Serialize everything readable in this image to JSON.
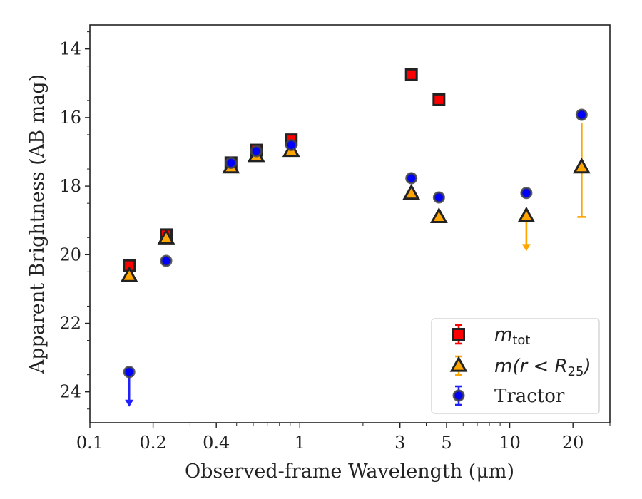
{
  "chart_data": {
    "type": "scatter",
    "title": "",
    "xlabel": "Observed-frame Wavelength (μm)",
    "ylabel": "Apparent Brightness (AB mag)",
    "xscale": "log",
    "yaxis_inverted": true,
    "xlim": [
      0.1,
      30
    ],
    "ylim": [
      24.9,
      13.3
    ],
    "x_ticks": [
      0.1,
      0.2,
      0.4,
      1,
      3,
      5,
      10,
      20
    ],
    "x_tick_labels": [
      "0.1",
      "0.2",
      "0.4",
      "1",
      "3",
      "5",
      "10",
      "20"
    ],
    "y_ticks": [
      14,
      16,
      18,
      20,
      22,
      24
    ],
    "y_tick_labels": [
      "14",
      "16",
      "18",
      "20",
      "22",
      "24"
    ],
    "grid": false,
    "legend_position": "bottom-right",
    "series": [
      {
        "name": "m_tot",
        "legend_label": {
          "main": "m",
          "sub": "tot"
        },
        "marker": "square",
        "color": "#ff0000",
        "edgecolor": "#222222",
        "points": [
          {
            "x": 0.154,
            "y": 20.32
          },
          {
            "x": 0.231,
            "y": 19.42
          },
          {
            "x": 0.47,
            "y": 17.32
          },
          {
            "x": 0.62,
            "y": 16.95
          },
          {
            "x": 0.91,
            "y": 16.65
          },
          {
            "x": 3.4,
            "y": 14.75
          },
          {
            "x": 4.6,
            "y": 15.48
          }
        ]
      },
      {
        "name": "m(r<R25)",
        "legend_label": {
          "main": "m(r < R",
          "sub": "25",
          "tail": ")"
        },
        "marker": "triangle",
        "color": "#ffa500",
        "edgecolor": "#222222",
        "points": [
          {
            "x": 0.154,
            "y": 20.62
          },
          {
            "x": 0.231,
            "y": 19.52
          },
          {
            "x": 0.47,
            "y": 17.45
          },
          {
            "x": 0.62,
            "y": 17.12
          },
          {
            "x": 0.91,
            "y": 16.97
          },
          {
            "x": 3.4,
            "y": 18.22
          },
          {
            "x": 4.6,
            "y": 18.9
          },
          {
            "x": 12.0,
            "y": 18.88,
            "upper_limit": true
          },
          {
            "x": 22.0,
            "y": 17.45,
            "yerr": [
              1.3,
              1.45
            ]
          }
        ]
      },
      {
        "name": "Tractor",
        "legend_label": {
          "main": "Tractor"
        },
        "marker": "circle",
        "color": "#0000ff",
        "edgecolor": "#444444",
        "points": [
          {
            "x": 0.154,
            "y": 23.42,
            "upper_limit": true
          },
          {
            "x": 0.231,
            "y": 20.18
          },
          {
            "x": 0.47,
            "y": 17.32
          },
          {
            "x": 0.62,
            "y": 16.98
          },
          {
            "x": 0.91,
            "y": 16.8
          },
          {
            "x": 3.4,
            "y": 17.77
          },
          {
            "x": 4.6,
            "y": 18.33
          },
          {
            "x": 12.0,
            "y": 18.2
          },
          {
            "x": 22.0,
            "y": 15.92
          }
        ]
      }
    ]
  }
}
